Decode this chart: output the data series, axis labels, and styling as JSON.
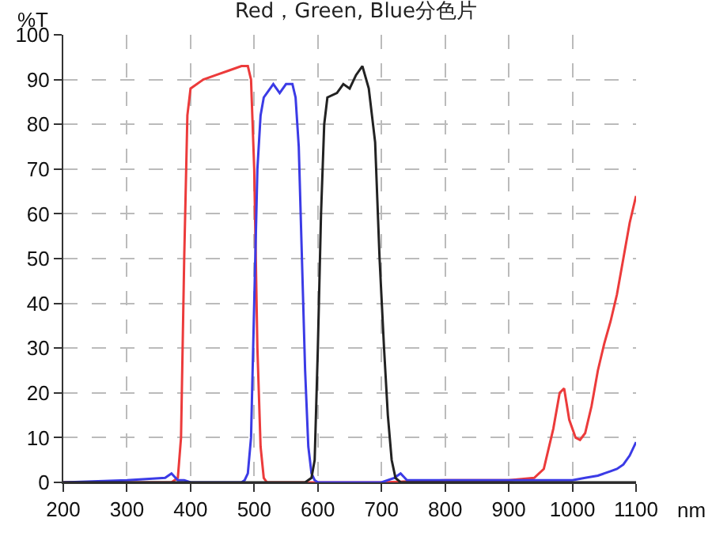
{
  "chart_data": {
    "type": "line",
    "title": "Red，Green, Blue分色片",
    "xlabel": "nm",
    "ylabel": "%T",
    "xlim": [
      200,
      1100
    ],
    "xticks": [
      200,
      300,
      400,
      500,
      600,
      700,
      800,
      900,
      1000,
      1100
    ],
    "ylim": [
      0,
      100
    ],
    "yticks": [
      0,
      10,
      20,
      30,
      40,
      50,
      60,
      70,
      80,
      90,
      100
    ],
    "grid": true,
    "marker": "none",
    "line_style": "solid",
    "series": [
      {
        "color": "#ec3b3b",
        "x": [
          200,
          300,
          370,
          380,
          385,
          390,
          395,
          400,
          420,
          440,
          460,
          480,
          490,
          495,
          500,
          505,
          510,
          515,
          520,
          540,
          600,
          700,
          800,
          900,
          940,
          955,
          970,
          980,
          987,
          995,
          1005,
          1012,
          1020,
          1030,
          1040,
          1050,
          1060,
          1070,
          1080,
          1090,
          1100
        ],
        "values": [
          0,
          0,
          0,
          1,
          10,
          50,
          82,
          88,
          90,
          91,
          92,
          93,
          93,
          90,
          70,
          30,
          8,
          1,
          0,
          0,
          0,
          0,
          0.5,
          0.5,
          1,
          3,
          12,
          20,
          21,
          14,
          10,
          9.5,
          11,
          17,
          25,
          31,
          36,
          42,
          50,
          58,
          64
        ]
      },
      {
        "color": "#3b3be6",
        "x": [
          200,
          300,
          360,
          370,
          380,
          390,
          400,
          480,
          485,
          490,
          495,
          500,
          505,
          510,
          515,
          520,
          530,
          540,
          550,
          560,
          565,
          570,
          575,
          580,
          585,
          590,
          595,
          600,
          620,
          700,
          720,
          730,
          740,
          800,
          900,
          960,
          1000,
          1020,
          1040,
          1050,
          1060,
          1070,
          1080,
          1090,
          1100
        ],
        "values": [
          0,
          0.5,
          1,
          2,
          0.5,
          0.5,
          0,
          0,
          0.5,
          2,
          10,
          40,
          70,
          82,
          86,
          87,
          89,
          87,
          89,
          89,
          86,
          75,
          50,
          25,
          8,
          2,
          0.5,
          0,
          0,
          0,
          1,
          2,
          0.5,
          0.5,
          0.5,
          0.5,
          0.5,
          1,
          1.5,
          2,
          2.5,
          3,
          4,
          6,
          9
        ]
      },
      {
        "color": "#222222",
        "x": [
          200,
          300,
          400,
          500,
          580,
          590,
          595,
          600,
          605,
          610,
          615,
          630,
          640,
          650,
          660,
          670,
          680,
          685,
          690,
          697,
          704,
          710,
          716,
          722,
          730,
          800,
          900,
          1000,
          1100
        ],
        "values": [
          0,
          0,
          0,
          0,
          0,
          1,
          5,
          30,
          60,
          80,
          86,
          87,
          89,
          88,
          91,
          93,
          88,
          82,
          76,
          50,
          30,
          15,
          5,
          1,
          0,
          0,
          0,
          0,
          0
        ]
      }
    ]
  }
}
